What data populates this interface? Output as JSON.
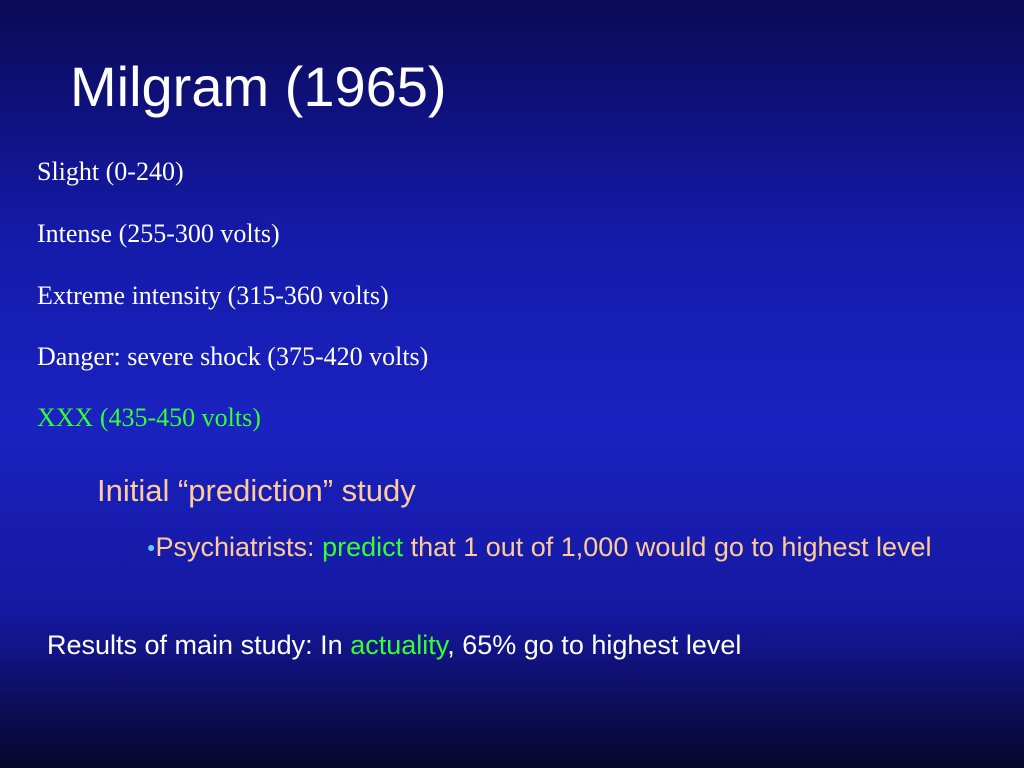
{
  "title": "Milgram (1965)",
  "levels": [
    "Slight (0-240)",
    "Intense (255-300 volts)",
    "Extreme intensity (315-360 volts)",
    "Danger: severe shock (375-420 volts)",
    "XXX (435-450 volts)"
  ],
  "prediction": {
    "heading": "Initial “prediction” study",
    "bullet": [
      "Psychiatrists:",
      "predict",
      "that 1 out of 1,000 would go to highest level"
    ]
  },
  "results": [
    "Results of main study: In",
    "actuality",
    ", 65% go to highest level"
  ]
}
